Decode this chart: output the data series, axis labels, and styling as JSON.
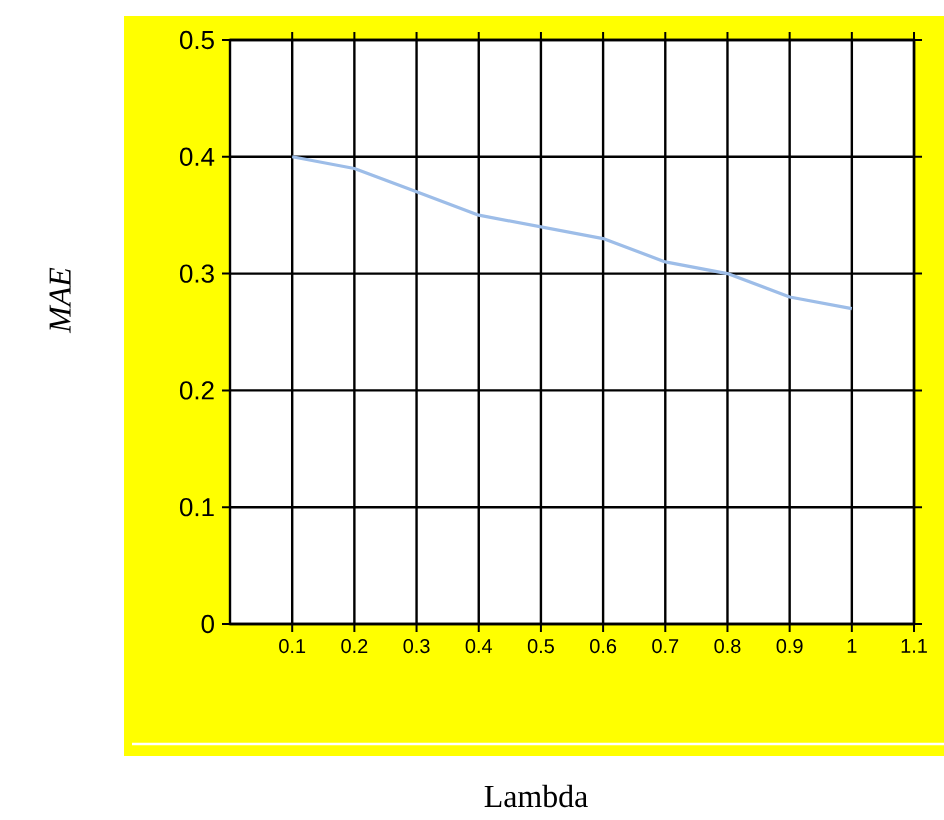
{
  "chart_data": {
    "type": "line",
    "xlabel": "Lambda",
    "ylabel": "*MAE*",
    "x": [
      0.1,
      0.2,
      0.3,
      0.4,
      0.5,
      0.6,
      0.7,
      0.8,
      0.9,
      1.0
    ],
    "series": [
      {
        "color": "#9dbde8",
        "values": [
          0.4,
          0.39,
          0.37,
          0.35,
          0.34,
          0.33,
          0.31,
          0.3,
          0.28,
          0.27
        ]
      }
    ],
    "xlim": [
      0,
      1.1
    ],
    "ylim": [
      0,
      0.5
    ],
    "xticks": [
      0.1,
      0.2,
      0.3,
      0.4,
      0.5,
      0.6,
      0.7,
      0.8,
      0.9,
      1,
      1.1
    ],
    "yticks": [
      0,
      0.1,
      0.2,
      0.3,
      0.4,
      0.5
    ],
    "grid": true,
    "marker": "none",
    "line_style": "solid"
  }
}
